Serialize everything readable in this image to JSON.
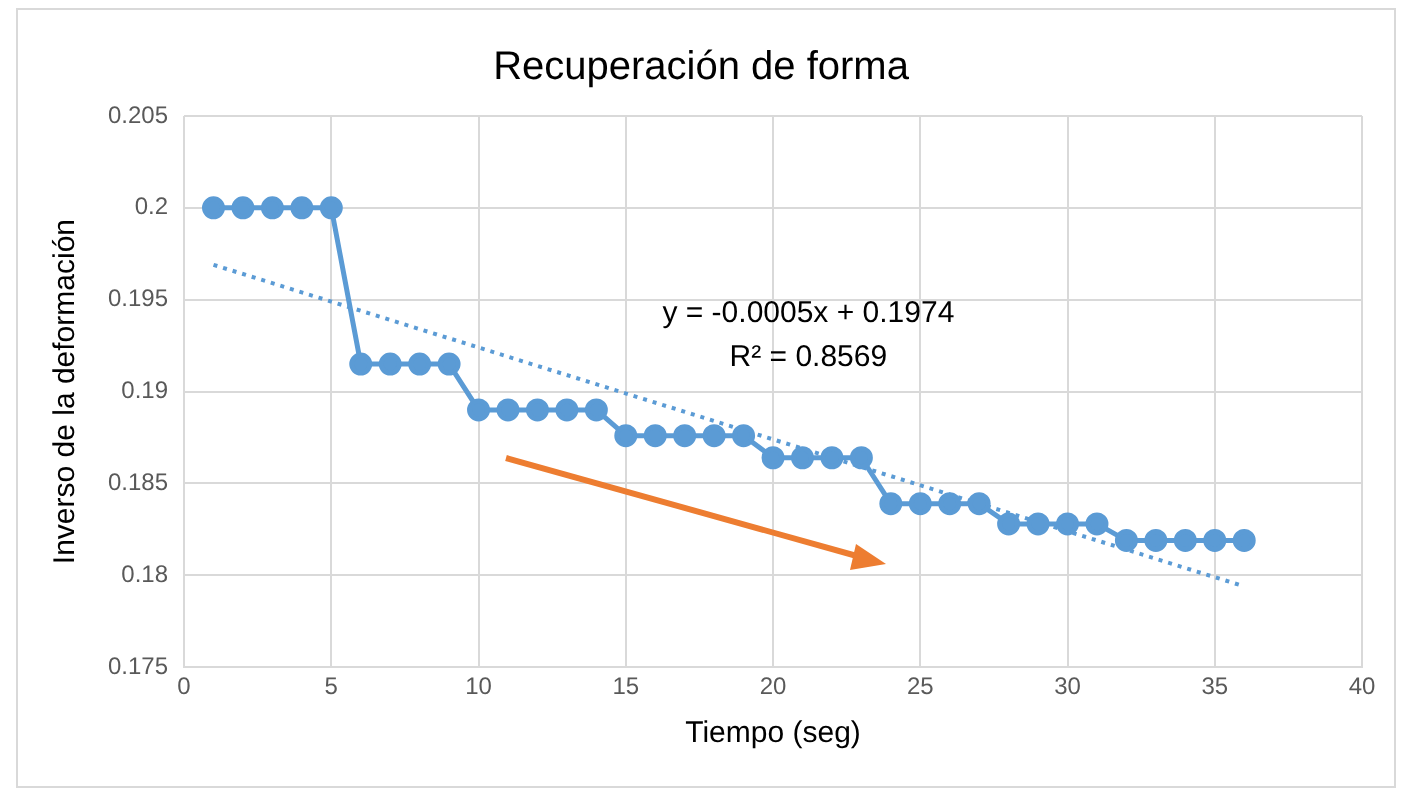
{
  "chart_data": {
    "type": "line",
    "title": "Recuperación de forma",
    "xlabel": "Tiempo (seg)",
    "ylabel": "Inverso de la deformación",
    "xlim": [
      0,
      40
    ],
    "xticks": [
      0,
      5,
      10,
      15,
      20,
      25,
      30,
      35,
      40
    ],
    "ylim": [
      0.175,
      0.205
    ],
    "yticks": [
      0.175,
      0.18,
      0.185,
      0.19,
      0.195,
      0.2,
      0.205
    ],
    "grid": true,
    "legend": false,
    "annotations": [
      "y = -0.0005x + 0.1974",
      "R² = 0.8569"
    ],
    "series": [
      {
        "color": "#5b9bd5",
        "marker": "circle",
        "line_style": "solid",
        "x": [
          1,
          2,
          3,
          4,
          5,
          6,
          7,
          8,
          9,
          10,
          11,
          12,
          13,
          14,
          15,
          16,
          17,
          18,
          19,
          20,
          21,
          22,
          23,
          24,
          25,
          26,
          27,
          28,
          29,
          30,
          31,
          32,
          33,
          34,
          35,
          36
        ],
        "values": [
          0.2,
          0.2,
          0.2,
          0.2,
          0.2,
          0.1915,
          0.1915,
          0.1915,
          0.1915,
          0.189,
          0.189,
          0.189,
          0.189,
          0.189,
          0.1876,
          0.1876,
          0.1876,
          0.1876,
          0.1876,
          0.1864,
          0.1864,
          0.1864,
          0.1864,
          0.1839,
          0.1839,
          0.1839,
          0.1839,
          0.1828,
          0.1828,
          0.1828,
          0.1828,
          0.1819,
          0.1819,
          0.1819,
          0.1819,
          0.1819
        ]
      },
      {
        "type": "line",
        "color": "#5b9bd5",
        "marker": "none",
        "line_style": "dotted",
        "x": [
          1,
          36
        ],
        "values": [
          0.1969,
          0.1794
        ]
      }
    ]
  }
}
